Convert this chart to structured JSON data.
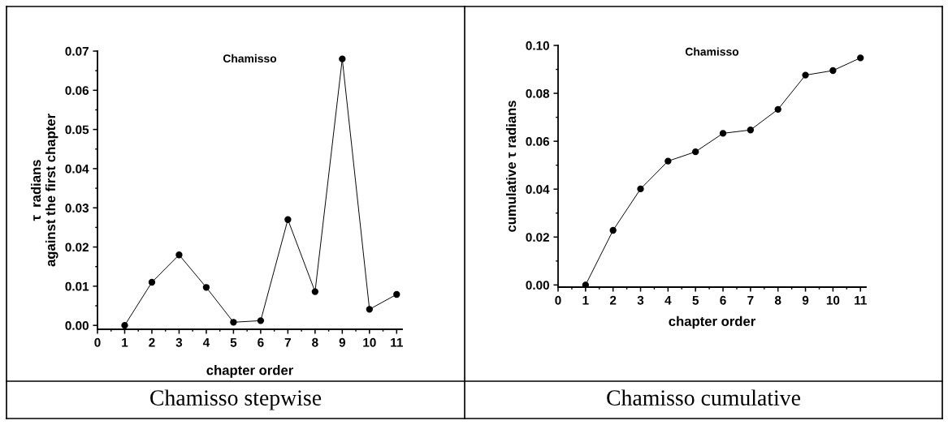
{
  "chart_data": [
    {
      "type": "line",
      "xlabel": "chapter order",
      "ylabel": "τ  radians\nagainst the first chapter",
      "annotations": [
        "Chamisso",
        "Chamisso stepwise"
      ],
      "x": [
        1,
        2,
        3,
        4,
        5,
        6,
        7,
        8,
        9,
        10,
        11
      ],
      "series": [
        {
          "color": "#000000",
          "values": [
            0.0,
            0.011,
            0.018,
            0.0097,
            0.0008,
            0.0012,
            0.027,
            0.0086,
            0.068,
            0.0041,
            0.0079
          ]
        }
      ],
      "xlim": [
        0,
        11.2
      ],
      "ylim": [
        -0.001,
        0.07
      ],
      "xticks": [
        0,
        1,
        2,
        3,
        4,
        5,
        6,
        7,
        8,
        9,
        10,
        11
      ],
      "yticks": [
        {
          "value": 0,
          "label": "0.00"
        },
        {
          "value": 0.01,
          "label": "0.01"
        },
        {
          "value": 0.02,
          "label": "0.02"
        },
        {
          "value": 0.03,
          "label": "0.03"
        },
        {
          "value": 0.04,
          "label": "0.04"
        },
        {
          "value": 0.05,
          "label": "0.05"
        },
        {
          "value": 0.06,
          "label": "0.06"
        },
        {
          "value": 0.07,
          "label": "0.07"
        }
      ],
      "marker": "circle",
      "line_style": "solid",
      "grid": false,
      "legend": false
    },
    {
      "type": "line",
      "xlabel": "chapter order",
      "ylabel": "cumulative τ radians",
      "annotations": [
        "Chamisso",
        "Chamisso cumulative"
      ],
      "x": [
        1,
        2,
        3,
        4,
        5,
        6,
        7,
        8,
        9,
        10,
        11
      ],
      "series": [
        {
          "color": "#000000",
          "values": [
            0.0,
            0.0228,
            0.0401,
            0.0517,
            0.0556,
            0.0633,
            0.0647,
            0.0733,
            0.0876,
            0.0895,
            0.0948
          ]
        }
      ],
      "xlim": [
        0,
        11.2
      ],
      "ylim": [
        -0.0009,
        0.1
      ],
      "xticks": [
        0,
        1,
        2,
        3,
        4,
        5,
        6,
        7,
        8,
        9,
        10,
        11
      ],
      "yticks": [
        {
          "value": 0,
          "label": "0.00"
        },
        {
          "value": 0.02,
          "label": "0.02"
        },
        {
          "value": 0.04,
          "label": "0.04"
        },
        {
          "value": 0.06,
          "label": "0.06"
        },
        {
          "value": 0.08,
          "label": "0.08"
        },
        {
          "value": 0.1,
          "label": "0.10"
        }
      ],
      "marker": "circle",
      "line_style": "solid",
      "grid": false,
      "legend": false
    }
  ]
}
